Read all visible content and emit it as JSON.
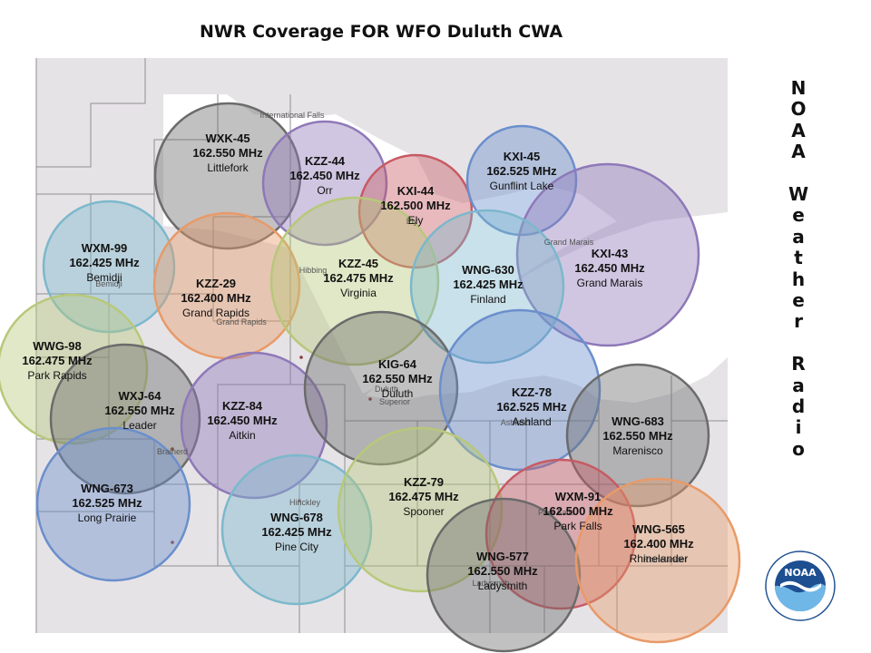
{
  "title": "NWR Coverage FOR WFO Duluth CWA",
  "side_title": [
    "N",
    "O",
    "A",
    "A",
    "",
    "W",
    "e",
    "a",
    "t",
    "h",
    "e",
    "r",
    "",
    "R",
    "a",
    "d",
    "i",
    "o"
  ],
  "transmitters": [
    {
      "id": "wxk45",
      "call": "WXK-45",
      "freq": "162.550 MHz",
      "city": "Littlefork",
      "color": "#6b6b6b"
    },
    {
      "id": "kzz44",
      "call": "KZZ-44",
      "freq": "162.450 MHz",
      "city": "Orr",
      "color": "#8e78b8"
    },
    {
      "id": "kxi44",
      "call": "KXI-44",
      "freq": "162.500 MHz",
      "city": "Ely",
      "color": "#c85a63"
    },
    {
      "id": "kxi45",
      "call": "KXI-45",
      "freq": "162.525 MHz",
      "city": "Gunflint Lake",
      "color": "#6b8fcc"
    },
    {
      "id": "kxi43",
      "call": "KXI-43",
      "freq": "162.450 MHz",
      "city": "Grand Marais",
      "color": "#8e78b8"
    },
    {
      "id": "wxm99",
      "call": "WXM-99",
      "freq": "162.425 MHz",
      "city": "Bemidji",
      "color": "#7cb8cc"
    },
    {
      "id": "kzz29",
      "call": "KZZ-29",
      "freq": "162.400 MHz",
      "city": "Grand Rapids",
      "color": "#e89a68"
    },
    {
      "id": "kzz45",
      "call": "KZZ-45",
      "freq": "162.475 MHz",
      "city": "Virginia",
      "color": "#b8c87a"
    },
    {
      "id": "wng630",
      "call": "WNG-630",
      "freq": "162.425 MHz",
      "city": "Finland",
      "color": "#7cb8cc"
    },
    {
      "id": "wwg98",
      "call": "WWG-98",
      "freq": "162.475 MHz",
      "city": "Park Rapids",
      "color": "#b8c87a"
    },
    {
      "id": "wxj64",
      "call": "WXJ-64",
      "freq": "162.550 MHz",
      "city": "Leader",
      "color": "#6b6b6b"
    },
    {
      "id": "kzz84",
      "call": "KZZ-84",
      "freq": "162.450 MHz",
      "city": "Aitkin",
      "color": "#8e78b8"
    },
    {
      "id": "kig64",
      "call": "KIG-64",
      "freq": "162.550 MHz",
      "city": "Duluth",
      "color": "#6b6b6b"
    },
    {
      "id": "kzz78",
      "call": "KZZ-78",
      "freq": "162.525 MHz",
      "city": "Ashland",
      "color": "#6b8fcc"
    },
    {
      "id": "wng683",
      "call": "WNG-683",
      "freq": "162.550 MHz",
      "city": "Marenisco",
      "color": "#6b6b6b"
    },
    {
      "id": "wng673",
      "call": "WNG-673",
      "freq": "162.525 MHz",
      "city": "Long Prairie",
      "color": "#6b8fcc"
    },
    {
      "id": "wng678",
      "call": "WNG-678",
      "freq": "162.425 MHz",
      "city": "Pine City",
      "color": "#7cb8cc"
    },
    {
      "id": "kzz79",
      "call": "KZZ-79",
      "freq": "162.475 MHz",
      "city": "Spooner",
      "color": "#b8c87a"
    },
    {
      "id": "wxm91",
      "call": "WXM-91",
      "freq": "162.500 MHz",
      "city": "Park Falls",
      "color": "#c85a63"
    },
    {
      "id": "wng577",
      "call": "WNG-577",
      "freq": "162.550 MHz",
      "city": "Ladysmith",
      "color": "#6b6b6b"
    },
    {
      "id": "wng565",
      "call": "WNG-565",
      "freq": "162.400 MHz",
      "city": "Rhinelander",
      "color": "#e89a68"
    }
  ],
  "place_labels": [
    "International Falls",
    "Ely",
    "Grand Marais",
    "Bemidji",
    "Hibbing",
    "Grand Rapids",
    "Duluth",
    "Superior",
    "Brainerd",
    "Ashland",
    "Hinckley",
    "Park Falls",
    "Ladysmith",
    "Rhinelander"
  ],
  "logo_text": "NOAA",
  "colors": {
    "map_bg": "#e6e3e7",
    "white_area": "#ffffff",
    "lake": "#ffffff",
    "county_line": "#9a9a9a"
  }
}
